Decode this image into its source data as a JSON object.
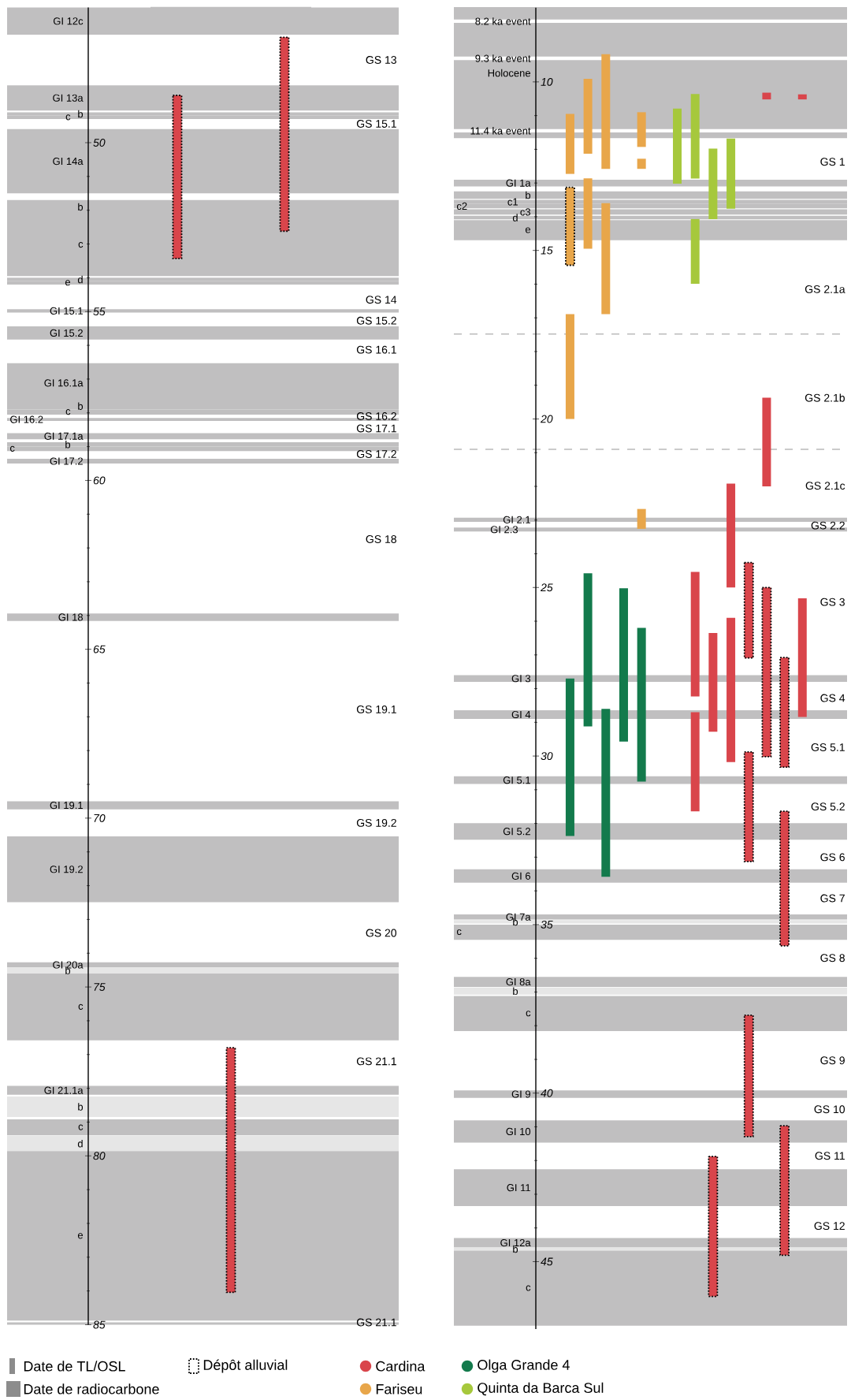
{
  "chart_data": [
    {
      "type": "bar",
      "categories": [
        null,
        null,
        null
      ],
      "tick_labels": "y",
      "ylim": [
        85,
        46
      ],
      "yticks": [
        50,
        55,
        60,
        65,
        70,
        75,
        80,
        85
      ],
      "series": [
        {
          "color": "#d9454b",
          "line_style": "dotted",
          "base": [
            48.6,
            76.8,
            46.88
          ],
          "values": [
            4.83,
            7.24,
            5.74
          ]
        }
      ],
      "bands": [
        {
          "axis": "y",
          "from": 46.0,
          "to": 46.8,
          "label": "GI 12c",
          "color": "#c0bfc0"
        },
        {
          "axis": "y",
          "from": 48.3,
          "to": 49.05,
          "label": "GI 13a",
          "color": "#c0bfc0"
        },
        {
          "axis": "y",
          "from": 49.1,
          "to": 49.2,
          "label": "b",
          "color": "#c0bfc0"
        },
        {
          "axis": "y",
          "from": 49.2,
          "to": 49.3,
          "label": "c",
          "color": "#c0bfc0"
        },
        {
          "axis": "y",
          "from": 49.6,
          "to": 51.5,
          "label": "GI 14a",
          "color": "#c0bfc0"
        },
        {
          "axis": "y",
          "from": 51.7,
          "to": 52.1,
          "label": "b",
          "color": "#c0bfc0"
        },
        {
          "axis": "y",
          "from": 52.1,
          "to": 53.95,
          "label": "c",
          "color": "#c0bfc0"
        },
        {
          "axis": "y",
          "from": 54.0,
          "to": 54.1,
          "label": "d",
          "color": "#c0bfc0"
        },
        {
          "axis": "y",
          "from": 54.1,
          "to": 54.2,
          "label": "e",
          "color": "#c0bfc0"
        },
        {
          "axis": "y",
          "from": 54.93,
          "to": 55.03,
          "label": "GI 15.1",
          "color": "#c0bfc0"
        },
        {
          "axis": "y",
          "from": 55.44,
          "to": 55.83,
          "label": "GI 15.2",
          "color": "#c0bfc0"
        },
        {
          "axis": "y",
          "from": 56.53,
          "to": 57.7,
          "label": "GI 16.1a",
          "color": "#c0bfc0"
        },
        {
          "axis": "y",
          "from": 57.7,
          "to": 57.9,
          "label": "b",
          "color": "#c0bfc0"
        },
        {
          "axis": "y",
          "from": 57.9,
          "to": 58.05,
          "label": "c",
          "color": "#c0bfc0"
        },
        {
          "axis": "y",
          "from": 58.15,
          "to": 58.24,
          "label": "GI 16.2",
          "color": "#c0bfc0"
        },
        {
          "axis": "y",
          "from": 58.6,
          "to": 58.78,
          "label": "GI 17.1a",
          "color": "#c0bfc0"
        },
        {
          "axis": "y",
          "from": 58.87,
          "to": 59.0,
          "label": "b",
          "color": "#c0bfc0"
        },
        {
          "axis": "y",
          "from": 59.0,
          "to": 59.13,
          "label": "c",
          "color": "#c0bfc0"
        },
        {
          "axis": "y",
          "from": 59.36,
          "to": 59.5,
          "label": "GI 17.2",
          "color": "#c0bfc0"
        },
        {
          "axis": "y",
          "from": 63.94,
          "to": 64.16,
          "label": "GI 18",
          "color": "#c0bfc0"
        },
        {
          "axis": "y",
          "from": 69.5,
          "to": 69.74,
          "label": "GI 19.1",
          "color": "#c0bfc0"
        },
        {
          "axis": "y",
          "from": 70.54,
          "to": 72.49,
          "label": "GI 19.2",
          "color": "#c0bfc0"
        },
        {
          "axis": "y",
          "from": 74.27,
          "to": 74.42,
          "label": "GI 20a",
          "color": "#c0bfc0"
        },
        {
          "axis": "y",
          "from": 74.42,
          "to": 74.6,
          "label": "b",
          "color": "#e6e6e6"
        },
        {
          "axis": "y",
          "from": 74.6,
          "to": 76.58,
          "label": "c",
          "color": "#c0bfc0"
        },
        {
          "axis": "y",
          "from": 77.93,
          "to": 78.19,
          "label": "GI 21.1a",
          "color": "#c0bfc0"
        },
        {
          "axis": "y",
          "from": 78.24,
          "to": 78.85,
          "label": "b",
          "color": "#e6e6e6"
        },
        {
          "axis": "y",
          "from": 78.92,
          "to": 79.39,
          "label": "c",
          "color": "#c0bfc0"
        },
        {
          "axis": "y",
          "from": 79.41,
          "to": 79.86,
          "label": "d",
          "color": "#e6e6e6"
        },
        {
          "axis": "y",
          "from": 79.86,
          "to": 84.88,
          "label": "e",
          "color": "#c0bfc0"
        },
        {
          "axis": "y",
          "from": 84.93,
          "to": 85.0,
          "label": null,
          "color": "#c0bfc0"
        }
      ],
      "annotations": [
        "GS 13",
        "GS 15.1",
        "GS 14",
        "GS 15.2",
        "GS 16.1",
        "GS 16.2",
        "GS 17.1",
        "GS 17.2",
        "GS 18",
        "GS 19.1",
        "GS 19.2",
        "GS 20",
        "GS 21.1",
        "GS 21.1",
        "Date de TL/OSL",
        "Date de radiocarbone",
        "Dépôt alluvial"
      ]
    },
    {
      "type": "bar",
      "categories": [
        null,
        null,
        null,
        null,
        null,
        null,
        null,
        null,
        null,
        null,
        null,
        null,
        null,
        null,
        null,
        null,
        null,
        null,
        null,
        null,
        null,
        null
      ],
      "tick_labels": "y",
      "legend": "bottom",
      "ylim": [
        47,
        7.8
      ],
      "yticks": [
        10,
        15,
        20,
        25,
        30,
        35,
        40,
        45
      ],
      "series": [
        {
          "name": "Cardina",
          "color": "#d9454b",
          "base": [
            null,
            null,
            null,
            null,
            null,
            null,
            null,
            null,
            null,
            null,
            null,
            null,
            null,
            24.54,
            26.35,
            25.9,
            null,
            19.37,
            null,
            25.32,
            null,
            null
          ],
          "values": [
            null,
            null,
            null,
            null,
            null,
            null,
            null,
            null,
            null,
            null,
            null,
            null,
            null,
            3.69,
            2.93,
            4.28,
            null,
            2.63,
            null,
            3.52,
            null,
            null
          ]
        },
        {
          "name": "Fariseu",
          "color": "#e8a64a",
          "base": [
            null,
            null,
            null,
            null,
            null,
            null,
            10.95,
            9.91,
            9.18,
            null,
            10.9,
            null,
            null,
            null,
            null,
            null,
            null,
            null,
            null,
            null,
            null,
            null
          ],
          "values": [
            null,
            null,
            null,
            null,
            null,
            null,
            1.78,
            2.22,
            3.4,
            null,
            1.03,
            null,
            null,
            null,
            null,
            null,
            null,
            null,
            null,
            null,
            null,
            null
          ]
        },
        {
          "name": "Olga Grande 4",
          "color": "#137a4c",
          "base": [
            null,
            null,
            null,
            null,
            null,
            null,
            27.7,
            24.58,
            28.6,
            25.02,
            26.2,
            null,
            null,
            null,
            null,
            null,
            null,
            null,
            null,
            null,
            null,
            null
          ],
          "values": [
            null,
            null,
            null,
            null,
            null,
            null,
            4.67,
            4.54,
            4.98,
            4.55,
            4.56,
            null,
            null,
            null,
            null,
            null,
            null,
            null,
            null,
            null,
            null,
            null
          ]
        },
        {
          "name": "Quinta da Barca Sul",
          "color": "#a6c83c",
          "base": [
            null,
            null,
            null,
            null,
            null,
            null,
            null,
            null,
            null,
            null,
            null,
            null,
            10.79,
            10.36,
            11.98,
            11.68,
            null,
            null,
            null,
            null,
            null,
            null
          ],
          "values": [
            null,
            null,
            null,
            null,
            null,
            null,
            null,
            null,
            null,
            null,
            null,
            null,
            2.23,
            2.51,
            2.09,
            2.08,
            null,
            null,
            null,
            null,
            null,
            null
          ]
        },
        {
          "color": "#e8a64a",
          "base": [
            null,
            null,
            null,
            null,
            null,
            null,
            16.89,
            12.86,
            13.6,
            null,
            12.28,
            null,
            null,
            null,
            null,
            null,
            null,
            null,
            null,
            null,
            null,
            null
          ],
          "values": [
            null,
            null,
            null,
            null,
            null,
            null,
            3.11,
            2.09,
            3.29,
            null,
            0.3,
            null,
            null,
            null,
            null,
            null,
            null,
            null,
            null,
            null,
            null,
            null
          ]
        },
        {
          "color": "#e8a64a",
          "line_style": "dotted",
          "base": [
            null,
            null,
            null,
            null,
            null,
            null,
            13.13,
            null,
            null,
            null,
            null,
            null,
            null,
            null,
            null,
            null,
            null,
            null,
            null,
            null,
            null,
            null
          ],
          "values": [
            null,
            null,
            null,
            null,
            null,
            null,
            2.31,
            null,
            null,
            null,
            null,
            null,
            null,
            null,
            null,
            null,
            null,
            null,
            null,
            null,
            null,
            null
          ]
        },
        {
          "color": "#e8a64a",
          "base": [
            null,
            null,
            null,
            null,
            null,
            null,
            null,
            null,
            null,
            null,
            22.67,
            null,
            null,
            null,
            null,
            null,
            null,
            null,
            null,
            null,
            null,
            null
          ],
          "values": [
            null,
            null,
            null,
            null,
            null,
            null,
            null,
            null,
            null,
            null,
            0.59,
            null,
            null,
            null,
            null,
            null,
            null,
            null,
            null,
            null,
            null,
            null
          ]
        },
        {
          "color": "#a6c83c",
          "base": [
            null,
            null,
            null,
            null,
            null,
            null,
            null,
            null,
            null,
            null,
            null,
            null,
            null,
            14.07,
            null,
            null,
            null,
            null,
            null,
            null,
            null,
            null
          ],
          "values": [
            null,
            null,
            null,
            null,
            null,
            null,
            null,
            null,
            null,
            null,
            null,
            null,
            null,
            1.92,
            null,
            null,
            null,
            null,
            null,
            null,
            null,
            null
          ]
        },
        {
          "color": "#d9454b",
          "base": [
            null,
            null,
            null,
            null,
            null,
            null,
            null,
            null,
            null,
            null,
            null,
            null,
            null,
            28.7,
            null,
            21.92,
            null,
            10.32,
            null,
            10.37,
            null,
            null
          ],
          "values": [
            null,
            null,
            null,
            null,
            null,
            null,
            null,
            null,
            null,
            null,
            null,
            null,
            null,
            2.94,
            null,
            3.08,
            null,
            0.2,
            null,
            0.15,
            null,
            null
          ]
        },
        {
          "color": "#d9454b",
          "line_style": "dotted",
          "base": [
            null,
            null,
            null,
            null,
            null,
            null,
            null,
            null,
            null,
            null,
            null,
            null,
            null,
            null,
            41.88,
            null,
            24.26,
            25.0,
            27.08,
            null,
            null,
            null
          ],
          "values": [
            null,
            null,
            null,
            null,
            null,
            null,
            null,
            null,
            null,
            null,
            null,
            null,
            null,
            null,
            4.15,
            null,
            2.83,
            5.02,
            3.25,
            null,
            null,
            null
          ]
        },
        {
          "color": "#d9454b",
          "line_style": "dotted",
          "base": [
            null,
            null,
            null,
            null,
            null,
            null,
            null,
            null,
            null,
            null,
            null,
            null,
            null,
            null,
            null,
            null,
            29.88,
            null,
            31.64,
            null,
            null,
            null
          ],
          "values": [
            null,
            null,
            null,
            null,
            null,
            null,
            null,
            null,
            null,
            null,
            null,
            null,
            null,
            null,
            null,
            null,
            3.25,
            null,
            3.99,
            null,
            null,
            null
          ]
        },
        {
          "color": "#d9454b",
          "line_style": "dotted",
          "base": [
            null,
            null,
            null,
            null,
            null,
            null,
            null,
            null,
            null,
            null,
            null,
            null,
            null,
            null,
            null,
            null,
            37.69,
            null,
            40.97,
            null,
            null,
            null
          ],
          "values": [
            null,
            null,
            null,
            null,
            null,
            null,
            null,
            null,
            null,
            null,
            null,
            null,
            null,
            null,
            null,
            null,
            3.6,
            null,
            3.84,
            null,
            null,
            null
          ]
        }
      ],
      "bands": [
        {
          "axis": "y",
          "from": 7.8,
          "to": 11.67,
          "label": "Holocene",
          "color": "#c0bfc0"
        },
        {
          "axis": "y",
          "from": 12.9,
          "to": 13.1,
          "label": "GI 1a",
          "color": "#c0bfc0"
        },
        {
          "axis": "y",
          "from": 13.25,
          "to": 13.47,
          "label": "b",
          "color": "#c0bfc0"
        },
        {
          "axis": "y",
          "from": 13.5,
          "to": 13.62,
          "label": "c1",
          "color": "#c0bfc0"
        },
        {
          "axis": "y",
          "from": 13.62,
          "to": 13.75,
          "label": "c2",
          "color": "#c0bfc0"
        },
        {
          "axis": "y",
          "from": 13.78,
          "to": 13.94,
          "label": "c3",
          "color": "#c0bfc0"
        },
        {
          "axis": "y",
          "from": 13.97,
          "to": 14.08,
          "label": "d",
          "color": "#c0bfc0"
        },
        {
          "axis": "y",
          "from": 14.1,
          "to": 14.7,
          "label": "e",
          "color": "#c0bfc0"
        },
        {
          "axis": "y",
          "from": 22.93,
          "to": 23.05,
          "label": "GI 2.1",
          "color": "#c0bfc0"
        },
        {
          "axis": "y",
          "from": 23.22,
          "to": 23.34,
          "label": "GI 2.3",
          "color": "#c0bfc0"
        },
        {
          "axis": "y",
          "from": 27.6,
          "to": 27.8,
          "label": "GI 3",
          "color": "#c0bfc0"
        },
        {
          "axis": "y",
          "from": 28.64,
          "to": 28.9,
          "label": "GI 4",
          "color": "#c0bfc0"
        },
        {
          "axis": "y",
          "from": 30.6,
          "to": 30.83,
          "label": "GI 5.1",
          "color": "#c0bfc0"
        },
        {
          "axis": "y",
          "from": 31.99,
          "to": 32.48,
          "label": "GI 5.2",
          "color": "#c0bfc0"
        },
        {
          "axis": "y",
          "from": 33.36,
          "to": 33.76,
          "label": "GI 6",
          "color": "#c0bfc0"
        },
        {
          "axis": "y",
          "from": 34.7,
          "to": 34.85,
          "label": "GI 7a",
          "color": "#c0bfc0"
        },
        {
          "axis": "y",
          "from": 34.87,
          "to": 34.97,
          "label": "b",
          "color": "#e6e6e6"
        },
        {
          "axis": "y",
          "from": 35.0,
          "to": 35.45,
          "label": "c",
          "color": "#c0bfc0"
        },
        {
          "axis": "y",
          "from": 36.55,
          "to": 36.85,
          "label": "GI 8a",
          "color": "#c0bfc0"
        },
        {
          "axis": "y",
          "from": 36.87,
          "to": 37.08,
          "label": "b",
          "color": "#e6e6e6"
        },
        {
          "axis": "y",
          "from": 37.12,
          "to": 38.16,
          "label": "c",
          "color": "#c0bfc0"
        },
        {
          "axis": "y",
          "from": 39.92,
          "to": 40.14,
          "label": "GI 9",
          "color": "#c0bfc0"
        },
        {
          "axis": "y",
          "from": 40.81,
          "to": 41.47,
          "label": "GI 10",
          "color": "#c0bfc0"
        },
        {
          "axis": "y",
          "from": 42.26,
          "to": 43.35,
          "label": "GI 11",
          "color": "#c0bfc0"
        },
        {
          "axis": "y",
          "from": 44.3,
          "to": 44.58,
          "label": "GI 12a",
          "color": "#c0bfc0"
        },
        {
          "axis": "y",
          "from": 44.58,
          "to": 44.67,
          "label": "b",
          "color": "#e6e6e6"
        },
        {
          "axis": "y",
          "from": 44.67,
          "to": 46.9,
          "label": "c",
          "color": "#c0bfc0"
        }
      ],
      "ref_lines": [
        {
          "axis": "y",
          "value": 8.2,
          "label": "8.2 ka event",
          "color": "#ffffff"
        },
        {
          "axis": "y",
          "value": 9.3,
          "label": "9.3 ka event",
          "color": "#ffffff"
        },
        {
          "axis": "y",
          "value": 11.45,
          "label": "11.4 ka event",
          "color": "#ffffff"
        },
        {
          "axis": "y",
          "value": 17.48,
          "color": "#bbbbbb",
          "line_style": "dashed"
        },
        {
          "axis": "y",
          "value": 20.9,
          "color": "#bbbbbb",
          "line_style": "dashed"
        }
      ],
      "annotations": [
        "GS 1",
        "GS 2.1a",
        "GS 2.1b",
        "GS 2.1c",
        "GS 2.2",
        "GS 3",
        "GS 4",
        "GS 5.1",
        "GS 5.2",
        "GS 6",
        "GS 7",
        "GS 8",
        "GS 9",
        "GS 10",
        "GS 11",
        "GS 12"
      ]
    }
  ]
}
